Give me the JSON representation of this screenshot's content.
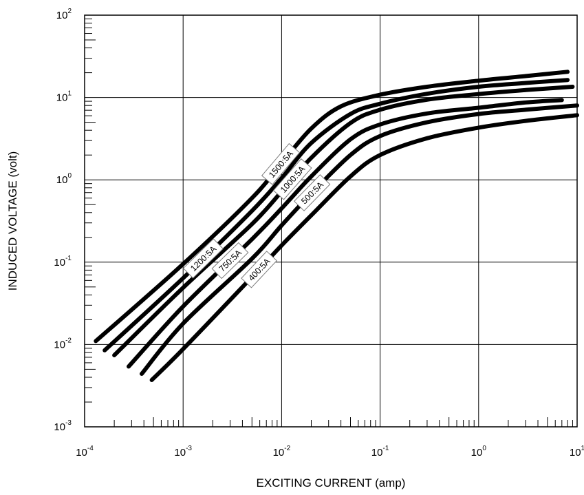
{
  "chart_data": {
    "type": "line",
    "xscale": "log",
    "yscale": "log",
    "xlim": [
      0.0001,
      10
    ],
    "ylim": [
      0.001,
      100
    ],
    "grid": true,
    "xlabel": "EXCITING CURRENT (amp)",
    "ylabel": "INDUCED VOLTAGE (volt)",
    "x_ticks": [
      {
        "base": "10",
        "exp": "-4"
      },
      {
        "base": "10",
        "exp": "-3"
      },
      {
        "base": "10",
        "exp": "-2"
      },
      {
        "base": "10",
        "exp": "-1"
      },
      {
        "base": "10",
        "exp": "0"
      },
      {
        "base": "10",
        "exp": "1"
      }
    ],
    "y_ticks": [
      {
        "base": "10",
        "exp": "-3"
      },
      {
        "base": "10",
        "exp": "-2"
      },
      {
        "base": "10",
        "exp": "-1"
      },
      {
        "base": "10",
        "exp": "0"
      },
      {
        "base": "10",
        "exp": "1"
      },
      {
        "base": "10",
        "exp": "2"
      }
    ],
    "series": [
      {
        "name": "1500:5A",
        "label_at": 0.0098,
        "x": [
          0.00013,
          0.001,
          0.005,
          0.01,
          0.02,
          0.04,
          0.1,
          0.3,
          1,
          3,
          8
        ],
        "y": [
          0.011,
          0.095,
          0.6,
          1.6,
          4.2,
          7.8,
          10.8,
          13.5,
          16,
          18.2,
          20.5
        ]
      },
      {
        "name": "1200:5A",
        "label_at": 0.0016,
        "x": [
          0.00016,
          0.001,
          0.005,
          0.01,
          0.02,
          0.05,
          0.1,
          0.3,
          1,
          3,
          8
        ],
        "y": [
          0.0085,
          0.064,
          0.42,
          1.05,
          2.8,
          6.3,
          8.4,
          11.1,
          13.5,
          15,
          16.3
        ]
      },
      {
        "name": "1000:5A",
        "label_at": 0.0129,
        "x": [
          0.0002,
          0.001,
          0.005,
          0.01,
          0.02,
          0.05,
          0.1,
          0.3,
          1,
          3,
          9
        ],
        "y": [
          0.0074,
          0.049,
          0.29,
          0.72,
          1.85,
          4.9,
          7.1,
          9.4,
          11,
          12.3,
          13.5
        ]
      },
      {
        "name": "750:5A",
        "label_at": 0.003,
        "x": [
          0.00028,
          0.001,
          0.005,
          0.01,
          0.02,
          0.05,
          0.1,
          0.3,
          1,
          3,
          7
        ],
        "y": [
          0.0054,
          0.029,
          0.19,
          0.45,
          1.1,
          3.1,
          4.7,
          6.4,
          7.5,
          8.7,
          9.3
        ]
      },
      {
        "name": "500:5A",
        "label_at": 0.0204,
        "x": [
          0.00038,
          0.001,
          0.005,
          0.01,
          0.02,
          0.05,
          0.1,
          0.3,
          1,
          3,
          10
        ],
        "y": [
          0.0044,
          0.018,
          0.11,
          0.28,
          0.68,
          2.0,
          3.4,
          5.0,
          6.3,
          7.1,
          8.0
        ]
      },
      {
        "name": "400:5A",
        "label_at": 0.0059,
        "x": [
          0.00048,
          0.001,
          0.005,
          0.01,
          0.02,
          0.05,
          0.1,
          0.3,
          1,
          3,
          10
        ],
        "y": [
          0.0037,
          0.0088,
          0.066,
          0.16,
          0.37,
          1.1,
          2.0,
          3.2,
          4.3,
          5.2,
          6.1
        ]
      }
    ]
  }
}
